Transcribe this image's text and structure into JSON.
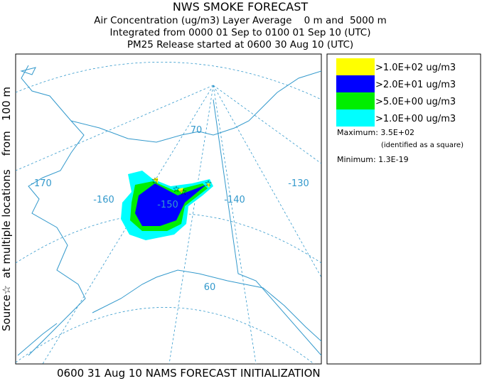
{
  "header": {
    "title": "NWS SMOKE FORECAST",
    "lines": [
      "Air Concentration (ug/m3) Layer Average    0 m and  5000 m",
      "Integrated from 0000 01 Sep to 0100 01 Sep 10 (UTC)",
      "PM25 Release started at 0600 30 Aug 10 (UTC)"
    ]
  },
  "side_label": "Source☆  at multiple locations    from   100 m",
  "map": {
    "labels": [
      {
        "text": "-170"
      },
      {
        "text": "-160"
      },
      {
        "text": "-150"
      },
      {
        "text": "-140"
      },
      {
        "text": "-130"
      },
      {
        "text": "70"
      },
      {
        "text": "60"
      }
    ]
  },
  "legend": {
    "items": [
      {
        "label": ">1.0E+02 ug/m3",
        "color": "#ffff00"
      },
      {
        "label": ">2.0E+01 ug/m3",
        "color": "#0000ff"
      },
      {
        "label": ">5.0E+00 ug/m3",
        "color": "#00ee00"
      },
      {
        "label": ">1.0E+00 ug/m3",
        "color": "#00ffff"
      }
    ],
    "maximum": "Maximum: 3.5E+02",
    "maximum_note": "(identified as a square)",
    "minimum": "Minimum: 1.3E-19"
  },
  "footer": "0600 31 Aug 10 NAMS FORECAST INITIALIZATION"
}
